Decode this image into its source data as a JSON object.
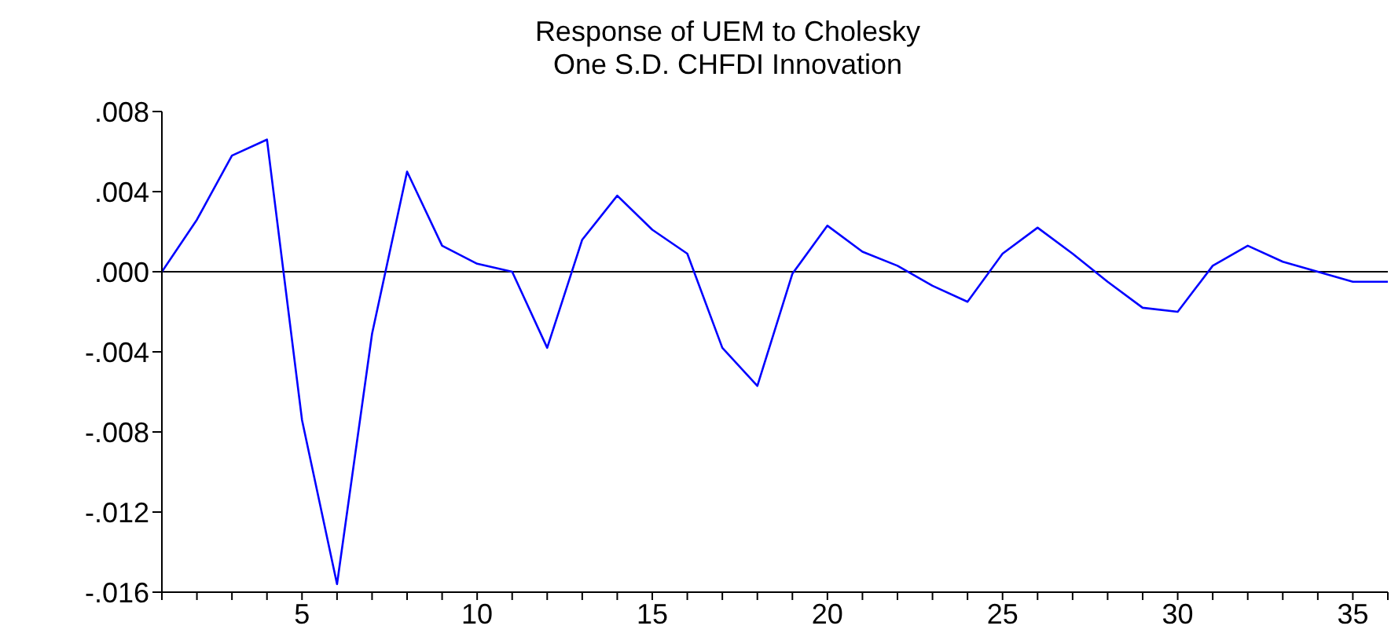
{
  "chart_data": {
    "type": "line",
    "title": "Response of UEM to Cholesky",
    "subtitle": "One S.D. CHFDI Innovation",
    "x": [
      1,
      2,
      3,
      4,
      5,
      6,
      7,
      8,
      9,
      10,
      11,
      12,
      13,
      14,
      15,
      16,
      17,
      18,
      19,
      20,
      21,
      22,
      23,
      24,
      25,
      26,
      27,
      28,
      29,
      30,
      31,
      32,
      33,
      34,
      35,
      36
    ],
    "series": [
      {
        "color": "#0000ff",
        "values": [
          0,
          0.0026,
          0.0058,
          0.0066,
          -0.0074,
          -0.0156,
          -0.0031,
          0.005,
          0.0013,
          0.0004,
          0,
          -0.0038,
          0.0016,
          0.0038,
          0.0021,
          0.0009,
          -0.0038,
          -0.0057,
          -0.0001,
          0.0023,
          0.001,
          0.0003,
          -0.0007,
          -0.0015,
          0.0009,
          0.0022,
          0.0009,
          -0.0005,
          -0.0018,
          -0.002,
          0.0003,
          0.0013,
          0.0005,
          0,
          -0.0005,
          -0.0005
        ]
      }
    ],
    "xlim": [
      1,
      36
    ],
    "xticks": [
      {
        "value": 1,
        "label": null
      },
      {
        "value": 2,
        "label": null
      },
      {
        "value": 3,
        "label": null
      },
      {
        "value": 4,
        "label": null
      },
      5,
      {
        "value": 6,
        "label": null
      },
      {
        "value": 7,
        "label": null
      },
      {
        "value": 8,
        "label": null
      },
      {
        "value": 9,
        "label": null
      },
      10,
      {
        "value": 11,
        "label": null
      },
      {
        "value": 12,
        "label": null
      },
      {
        "value": 13,
        "label": null
      },
      {
        "value": 14,
        "label": null
      },
      15,
      {
        "value": 16,
        "label": null
      },
      {
        "value": 17,
        "label": null
      },
      {
        "value": 18,
        "label": null
      },
      {
        "value": 19,
        "label": null
      },
      20,
      {
        "value": 21,
        "label": null
      },
      {
        "value": 22,
        "label": null
      },
      {
        "value": 23,
        "label": null
      },
      {
        "value": 24,
        "label": null
      },
      25,
      {
        "value": 26,
        "label": null
      },
      {
        "value": 27,
        "label": null
      },
      {
        "value": 28,
        "label": null
      },
      {
        "value": 29,
        "label": null
      },
      30,
      {
        "value": 31,
        "label": null
      },
      {
        "value": 32,
        "label": null
      },
      {
        "value": 33,
        "label": null
      },
      {
        "value": 34,
        "label": null
      },
      35,
      {
        "value": 36,
        "label": null
      }
    ],
    "ylim": [
      -0.016,
      0.008
    ],
    "yticks": [
      {
        "value": -0.016,
        "label": "-.016"
      },
      {
        "value": -0.012,
        "label": "-.012"
      },
      {
        "value": -0.008,
        "label": "-.008"
      },
      {
        "value": -0.004,
        "label": "-.004"
      },
      {
        "value": 0,
        "label": ".000"
      },
      {
        "value": 0.004,
        "label": ".004"
      },
      {
        "value": 0.008,
        "label": ".008"
      }
    ],
    "ref_lines": [
      {
        "axis": "y",
        "value": 0,
        "color": "#000000"
      }
    ],
    "grid": false,
    "legend": false,
    "marker": "none",
    "line_style": "solid"
  }
}
